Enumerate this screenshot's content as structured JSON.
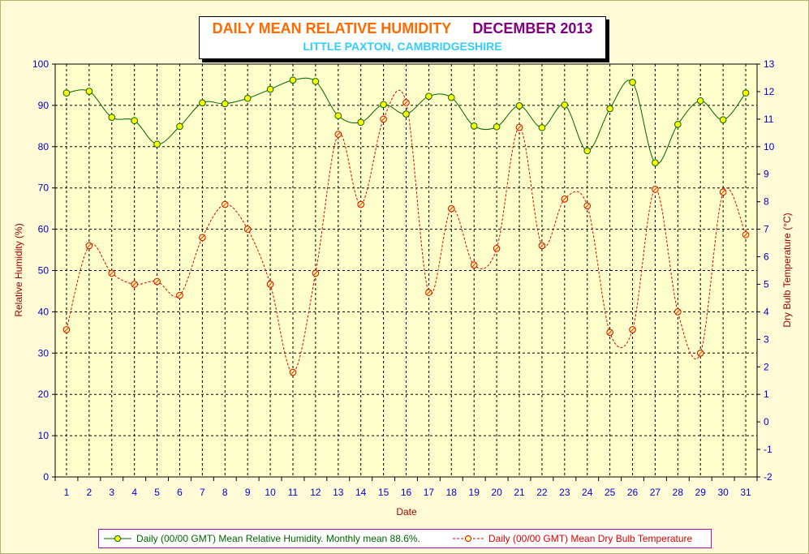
{
  "title": {
    "main": "DAILY MEAN RELATIVE HUMIDITY",
    "month": "DECEMBER 2013",
    "subtitle": "LITTLE PAXTON, CAMBRIDGESHIRE"
  },
  "colors": {
    "background": "#fffbd7",
    "title_main": "#ff6a00",
    "title_month": "#800080",
    "subtitle": "#33ccff",
    "humidity_line": "#006400",
    "humidity_marker": "#ffff00",
    "temperature_line": "#e00000",
    "temperature_marker": "#ffff99",
    "axis_tick_labels": "#0000cc",
    "axis_titles": "#990000"
  },
  "legend": {
    "humidity": "Daily (00/00 GMT) Mean Relative Humidity. Monthly mean 88.6%.",
    "temperature": "Daily (00/00 GMT) Mean Dry Bulb Temperature"
  },
  "chart_data": {
    "type": "line",
    "xlabel": "Date",
    "ylabel": "Relative Humidity (%)",
    "y2label": "Dry Bulb Temperature (°C)",
    "ylim": [
      0,
      100
    ],
    "y2lim": [
      -2,
      13
    ],
    "grid": true,
    "legend_position": "bottom",
    "categories": [
      "1",
      "2",
      "3",
      "4",
      "5",
      "6",
      "7",
      "8",
      "9",
      "10",
      "11",
      "12",
      "13",
      "14",
      "15",
      "16",
      "17",
      "18",
      "19",
      "20",
      "21",
      "22",
      "23",
      "24",
      "25",
      "26",
      "27",
      "28",
      "29",
      "30",
      "31"
    ],
    "y_ticks": [
      "0",
      "10",
      "20",
      "30",
      "40",
      "50",
      "60",
      "70",
      "80",
      "90",
      "100"
    ],
    "y2_ticks": [
      "-2",
      "-1",
      "0",
      "1",
      "2",
      "3",
      "4",
      "5",
      "6",
      "7",
      "8",
      "9",
      "10",
      "11",
      "12",
      "13"
    ],
    "series": [
      {
        "name": "Daily (00/00 GMT) Mean Relative Humidity. Monthly mean 88.6%.",
        "axis": "left",
        "style": "solid",
        "values": [
          93.0,
          93.4,
          87.1,
          86.3,
          80.6,
          84.9,
          90.6,
          90.4,
          91.7,
          93.9,
          96.1,
          95.8,
          87.5,
          85.9,
          90.2,
          87.9,
          92.2,
          91.9,
          85.0,
          84.8,
          89.9,
          84.6,
          90.1,
          79.0,
          89.2,
          95.6,
          76.1,
          85.4,
          91.1,
          86.5,
          93.0
        ]
      },
      {
        "name": "Daily (00/00 GMT) Mean Dry Bulb Temperature",
        "axis": "right",
        "style": "dashed",
        "values": [
          3.35,
          6.4,
          5.4,
          5.0,
          5.1,
          4.6,
          6.7,
          7.9,
          7.0,
          5.0,
          1.8,
          5.4,
          10.45,
          7.9,
          11.0,
          11.6,
          4.7,
          7.75,
          5.7,
          6.3,
          10.7,
          6.4,
          8.1,
          7.85,
          3.25,
          3.35,
          8.45,
          4.0,
          2.5,
          8.35,
          6.8
        ]
      }
    ]
  }
}
